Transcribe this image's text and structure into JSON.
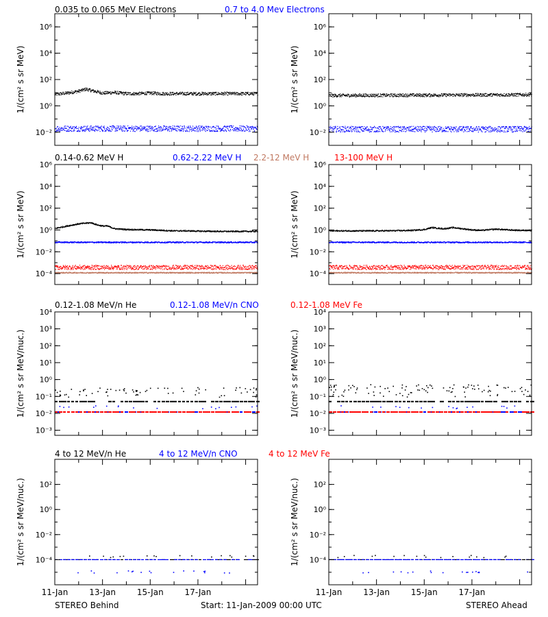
{
  "colors": {
    "black": "#000000",
    "blue": "#0000ff",
    "brown": "#c07860",
    "red": "#ff0000"
  },
  "footer": {
    "left": "STEREO Behind",
    "center": "Start: 11-Jan-2009 00:00 UTC",
    "right": "STEREO Ahead"
  },
  "x_tick_labels": [
    "11-Jan",
    "13-Jan",
    "15-Jan",
    "17-Jan"
  ],
  "rows": [
    {
      "legend": [
        {
          "text": "0.035 to 0.065 MeV Electrons",
          "color": "#000000"
        },
        {
          "text": "0.7 to 4.0 Mev Electrons",
          "color": "#0000ff"
        }
      ],
      "ylabel": "1/(cm² s sr MeV)"
    },
    {
      "legend": [
        {
          "text": "0.14-0.62 MeV H",
          "color": "#000000"
        },
        {
          "text": "0.62-2.22 MeV H",
          "color": "#0000ff"
        },
        {
          "text": "2.2-12 MeV H",
          "color": "#c07860"
        },
        {
          "text": "13-100 MeV H",
          "color": "#ff0000"
        }
      ],
      "ylabel": "1/(cm² s sr MeV)"
    },
    {
      "legend": [
        {
          "text": "0.12-1.08 MeV/n He",
          "color": "#000000"
        },
        {
          "text": "0.12-1.08 MeV/n CNO",
          "color": "#0000ff"
        },
        {
          "text": "0.12-1.08 MeV Fe",
          "color": "#ff0000"
        }
      ],
      "ylabel": "1/(cm² s sr MeV/nuc.)"
    },
    {
      "legend": [
        {
          "text": "4 to 12 MeV/n He",
          "color": "#000000"
        },
        {
          "text": "4 to 12 MeV/n CNO",
          "color": "#0000ff"
        },
        {
          "text": "4 to 12 MeV Fe",
          "color": "#ff0000"
        }
      ],
      "ylabel": "1/(cm² s sr MeV/nuc.)"
    }
  ],
  "chart_data": [
    {
      "type": "scatter",
      "panel": "electrons-behind",
      "x_days": [
        0,
        8.5
      ],
      "y_scale": "log",
      "ylim": [
        0.001,
        10000000
      ],
      "yticks": [
        {
          "v": 0.01,
          "l": "10⁻²"
        },
        {
          "v": 1,
          "l": "10⁰"
        },
        {
          "v": 100,
          "l": "10²"
        },
        {
          "v": 10000,
          "l": "10⁴"
        },
        {
          "v": 1000000,
          "l": "10⁶"
        }
      ],
      "series": [
        {
          "name": "0.035 to 0.065 MeV Electrons",
          "color": "#000000",
          "x": [
            0,
            0.5,
            1,
            1.3,
            1.5,
            2,
            2.5,
            3,
            3.5,
            4,
            4.5,
            5,
            5.5,
            6,
            6.5,
            7,
            7.5,
            8,
            8.5
          ],
          "values": [
            8,
            10,
            14,
            20,
            16,
            10,
            11,
            9,
            9,
            10,
            9,
            9,
            9,
            9,
            9,
            9,
            9,
            9,
            9
          ],
          "spread": 0.12
        },
        {
          "name": "0.7 to 4.0 Mev Electrons",
          "color": "#0000ff",
          "x": [
            0,
            8.5
          ],
          "values": [
            0.02,
            0.02
          ],
          "spread": 0.22
        }
      ]
    },
    {
      "type": "scatter",
      "panel": "electrons-ahead",
      "x_days": [
        0,
        8.5
      ],
      "y_scale": "log",
      "ylim": [
        0.001,
        10000000
      ],
      "yticks": [
        {
          "v": 0.01,
          "l": "10⁻²"
        },
        {
          "v": 1,
          "l": "10⁰"
        },
        {
          "v": 100,
          "l": "10²"
        },
        {
          "v": 10000,
          "l": "10⁴"
        },
        {
          "v": 1000000,
          "l": "10⁶"
        }
      ],
      "series": [
        {
          "name": "0.035 to 0.065 MeV Electrons",
          "color": "#000000",
          "x": [
            0,
            8.5
          ],
          "values": [
            6.5,
            7.5
          ],
          "spread": 0.12
        },
        {
          "name": "0.7 to 4.0 Mev Electrons",
          "color": "#0000ff",
          "x": [
            0,
            8.5
          ],
          "values": [
            0.018,
            0.018
          ],
          "spread": 0.22
        }
      ]
    },
    {
      "type": "scatter",
      "panel": "protons-behind",
      "x_days": [
        0,
        8.5
      ],
      "y_scale": "log",
      "ylim": [
        1e-05,
        1000000
      ],
      "yticks": [
        {
          "v": 0.0001,
          "l": "10⁻⁴"
        },
        {
          "v": 0.01,
          "l": "10⁻²"
        },
        {
          "v": 1,
          "l": "10⁰"
        },
        {
          "v": 100,
          "l": "10²"
        },
        {
          "v": 10000,
          "l": "10⁴"
        },
        {
          "v": 1000000,
          "l": "10⁶"
        }
      ],
      "series": [
        {
          "name": "0.14-0.62 MeV H",
          "color": "#000000",
          "x": [
            0,
            0.5,
            1,
            1.5,
            1.8,
            2,
            2.2,
            2.5,
            3,
            4,
            4.5,
            5,
            5.5,
            6,
            7,
            8,
            8.5
          ],
          "values": [
            1.5,
            2.5,
            4,
            5,
            3,
            2.5,
            2.5,
            1.4,
            1.2,
            1.1,
            1.0,
            0.9,
            0.9,
            0.85,
            0.8,
            0.8,
            0.8
          ],
          "spread": 0.06
        },
        {
          "name": "0.62-2.22 MeV H",
          "color": "#0000ff",
          "x": [
            0,
            8.5
          ],
          "values": [
            0.08,
            0.08
          ],
          "spread": 0.06
        },
        {
          "name": "2.2-12 MeV H",
          "color": "#c07860",
          "x": [
            0,
            8.5
          ],
          "values": [
            0.00013,
            0.00013
          ],
          "spread": 0.05
        },
        {
          "name": "13-100 MeV H",
          "color": "#ff0000",
          "x": [
            0,
            8.5
          ],
          "values": [
            0.0004,
            0.0004
          ],
          "spread": 0.2
        }
      ]
    },
    {
      "type": "scatter",
      "panel": "protons-ahead",
      "x_days": [
        0,
        8.5
      ],
      "y_scale": "log",
      "ylim": [
        1e-05,
        1000000
      ],
      "yticks": [
        {
          "v": 0.0001,
          "l": "10⁻⁴"
        },
        {
          "v": 0.01,
          "l": "10⁻²"
        },
        {
          "v": 1,
          "l": "10⁰"
        },
        {
          "v": 100,
          "l": "10²"
        },
        {
          "v": 10000,
          "l": "10⁴"
        },
        {
          "v": 1000000,
          "l": "10⁶"
        }
      ],
      "series": [
        {
          "name": "0.14-0.62 MeV H",
          "color": "#000000",
          "x": [
            0,
            1,
            2,
            3,
            3.5,
            4,
            4.3,
            4.8,
            5.2,
            5.6,
            6,
            6.4,
            7,
            7.5,
            8,
            8.5
          ],
          "values": [
            0.9,
            0.9,
            0.9,
            0.95,
            1.0,
            1.2,
            1.8,
            1.4,
            1.8,
            1.4,
            1.1,
            1.0,
            1.3,
            1.1,
            1.0,
            1.0
          ],
          "spread": 0.06
        },
        {
          "name": "0.62-2.22 MeV H",
          "color": "#0000ff",
          "x": [
            0,
            8.5
          ],
          "values": [
            0.08,
            0.08
          ],
          "spread": 0.06
        },
        {
          "name": "2.2-12 MeV H",
          "color": "#c07860",
          "x": [
            0,
            8.5
          ],
          "values": [
            0.00013,
            0.00013
          ],
          "spread": 0.05
        },
        {
          "name": "13-100 MeV H",
          "color": "#ff0000",
          "x": [
            0,
            8.5
          ],
          "values": [
            0.0004,
            0.0004
          ],
          "spread": 0.2
        }
      ]
    },
    {
      "type": "scatter",
      "panel": "heavy-behind",
      "x_days": [
        0,
        8.5
      ],
      "y_scale": "log",
      "ylim": [
        0.0005,
        10000
      ],
      "yticks": [
        {
          "v": 0.001,
          "l": "10⁻³"
        },
        {
          "v": 0.01,
          "l": "10⁻²"
        },
        {
          "v": 0.1,
          "l": "10⁻¹"
        },
        {
          "v": 1,
          "l": "10⁰"
        },
        {
          "v": 10,
          "l": "10¹"
        },
        {
          "v": 100,
          "l": "10²"
        },
        {
          "v": 1000,
          "l": "10³"
        },
        {
          "v": 10000,
          "l": "10⁴"
        }
      ],
      "series": [
        {
          "name": "0.12-1.08 MeV/n He",
          "color": "#000000",
          "x": [
            0,
            8.5
          ],
          "values": [
            0.05,
            0.05
          ],
          "sparse": [
            0.12,
            0.2,
            0.3
          ]
        },
        {
          "name": "0.12-1.08 MeV/n CNO",
          "color": "#0000ff",
          "x": [
            0,
            8.5
          ],
          "values": [
            0.012,
            0.012
          ],
          "sparse": [
            0.025
          ]
        },
        {
          "name": "0.12-1.08 MeV Fe",
          "color": "#ff0000",
          "x": [
            0,
            8.5
          ],
          "values": [
            0.012,
            0.012
          ]
        }
      ]
    },
    {
      "type": "scatter",
      "panel": "heavy-ahead",
      "x_days": [
        0,
        8.5
      ],
      "y_scale": "log",
      "ylim": [
        0.0005,
        10000
      ],
      "yticks": [
        {
          "v": 0.001,
          "l": "10⁻³"
        },
        {
          "v": 0.01,
          "l": "10⁻²"
        },
        {
          "v": 0.1,
          "l": "10⁻¹"
        },
        {
          "v": 1,
          "l": "10⁰"
        },
        {
          "v": 10,
          "l": "10¹"
        },
        {
          "v": 100,
          "l": "10²"
        },
        {
          "v": 1000,
          "l": "10³"
        },
        {
          "v": 10000,
          "l": "10⁴"
        }
      ],
      "series": [
        {
          "name": "0.12-1.08 MeV/n He",
          "color": "#000000",
          "x": [
            0,
            8.5
          ],
          "values": [
            0.05,
            0.05
          ],
          "sparse": [
            0.12,
            0.2,
            0.3,
            0.45
          ]
        },
        {
          "name": "0.12-1.08 MeV/n CNO",
          "color": "#0000ff",
          "x": [
            0,
            8.5
          ],
          "values": [
            0.012,
            0.012
          ],
          "sparse": [
            0.025
          ]
        },
        {
          "name": "0.12-1.08 MeV Fe",
          "color": "#ff0000",
          "x": [
            0,
            8.5
          ],
          "values": [
            0.012,
            0.012
          ]
        }
      ]
    },
    {
      "type": "scatter",
      "panel": "high-energy-behind",
      "x_days": [
        0,
        8.5
      ],
      "y_scale": "log",
      "ylim": [
        1e-06,
        10000
      ],
      "yticks": [
        {
          "v": 0.0001,
          "l": "10⁻⁴"
        },
        {
          "v": 0.01,
          "l": "10⁻²"
        },
        {
          "v": 1,
          "l": "10⁰"
        },
        {
          "v": 100,
          "l": "10²"
        }
      ],
      "series": [
        {
          "name": "4 to 12 MeV/n He",
          "color": "#000000",
          "x": [
            0,
            8.5
          ],
          "values": [
            0.0001,
            0.0001
          ],
          "sparse": [
            0.0002
          ]
        },
        {
          "name": "4 to 12 MeV/n CNO",
          "color": "#0000ff",
          "x": [
            0,
            8.5
          ],
          "values": [
            0.0001,
            0.0001
          ],
          "sparse": [
            1.2e-05
          ]
        },
        {
          "name": "4 to 12 MeV Fe",
          "color": "#ff0000",
          "x": [],
          "values": []
        }
      ]
    },
    {
      "type": "scatter",
      "panel": "high-energy-ahead",
      "x_days": [
        0,
        8.5
      ],
      "y_scale": "log",
      "ylim": [
        1e-06,
        10000
      ],
      "yticks": [
        {
          "v": 0.0001,
          "l": "10⁻⁴"
        },
        {
          "v": 0.01,
          "l": "10⁻²"
        },
        {
          "v": 1,
          "l": "10⁰"
        },
        {
          "v": 100,
          "l": "10²"
        }
      ],
      "series": [
        {
          "name": "4 to 12 MeV/n He",
          "color": "#000000",
          "x": [
            0,
            8.5
          ],
          "values": [
            0.0001,
            0.0001
          ],
          "sparse": [
            0.0002
          ]
        },
        {
          "name": "4 to 12 MeV/n CNO",
          "color": "#0000ff",
          "x": [
            0,
            8.5
          ],
          "values": [
            0.0001,
            0.0001
          ],
          "sparse": [
            1.2e-05
          ]
        },
        {
          "name": "4 to 12 MeV Fe",
          "color": "#ff0000",
          "x": [],
          "values": []
        }
      ]
    }
  ]
}
